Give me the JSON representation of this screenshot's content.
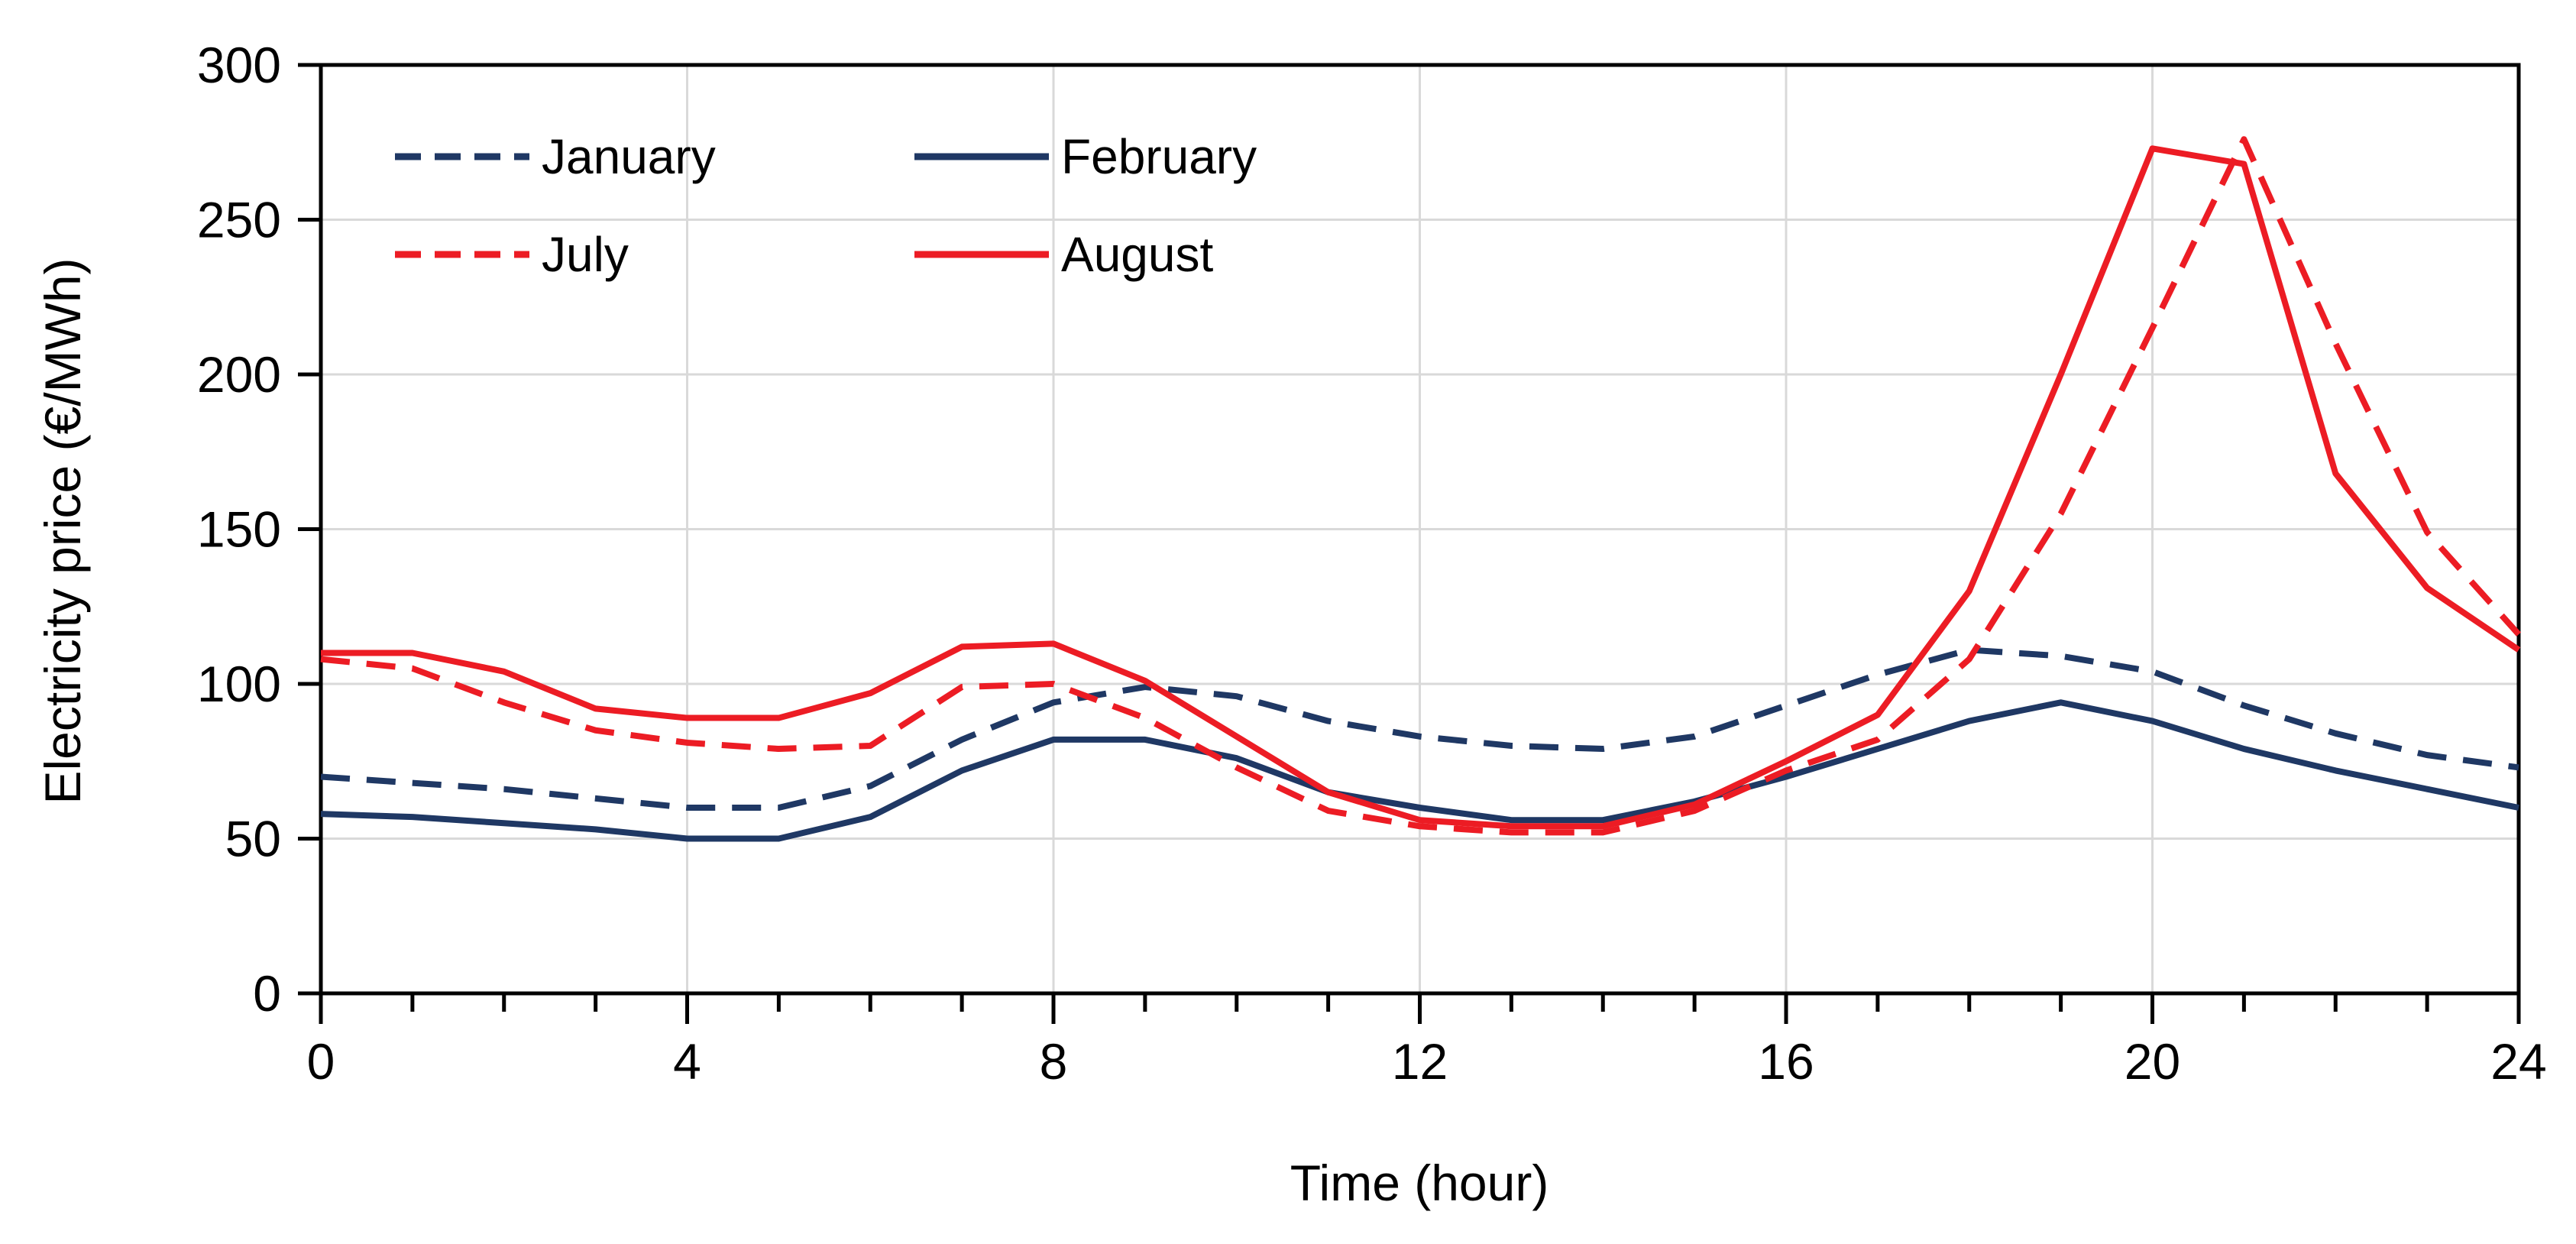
{
  "figure": {
    "background": "#ffffff",
    "text_color": "#000000"
  },
  "chart_data": {
    "type": "line",
    "title": "",
    "xlabel": "Time (hour)",
    "ylabel": "Electricity price (€/MWh)",
    "xlim": [
      0,
      24
    ],
    "ylim": [
      0,
      300
    ],
    "xticks": [
      0,
      4,
      8,
      12,
      16,
      20,
      24
    ],
    "yticks": [
      0,
      50,
      100,
      150,
      200,
      250,
      300
    ],
    "grid": {
      "on": true,
      "color": "#d9d9d9",
      "vertical_step_hours": 4,
      "horizontal_step": 50
    },
    "axis_color": "#000000",
    "x": [
      0,
      1,
      2,
      3,
      4,
      5,
      6,
      7,
      8,
      9,
      10,
      11,
      12,
      13,
      14,
      15,
      16,
      17,
      18,
      19,
      20,
      21,
      22,
      23,
      24
    ],
    "series": [
      {
        "name": "January",
        "color": "#1f3864",
        "dash": true,
        "values": [
          70,
          68,
          66,
          63,
          60,
          60,
          67,
          82,
          94,
          99,
          96,
          88,
          83,
          80,
          79,
          83,
          93,
          103,
          111,
          109,
          104,
          93,
          84,
          77,
          73
        ]
      },
      {
        "name": "February",
        "color": "#1f3864",
        "dash": false,
        "values": [
          58,
          57,
          55,
          53,
          50,
          50,
          57,
          72,
          82,
          82,
          76,
          65,
          60,
          56,
          56,
          62,
          70,
          79,
          88,
          94,
          88,
          79,
          72,
          66,
          60
        ]
      },
      {
        "name": "July",
        "color": "#ec1c24",
        "dash": true,
        "values": [
          108,
          105,
          94,
          85,
          81,
          79,
          80,
          99,
          100,
          89,
          73,
          59,
          54,
          52,
          52,
          59,
          72,
          82,
          108,
          155,
          215,
          276,
          210,
          149,
          116
        ]
      },
      {
        "name": "August",
        "color": "#ec1c24",
        "dash": false,
        "values": [
          110,
          110,
          104,
          92,
          89,
          89,
          97,
          112,
          113,
          101,
          83,
          65,
          56,
          54,
          54,
          61,
          75,
          90,
          130,
          200,
          273,
          268,
          168,
          131,
          111
        ]
      }
    ],
    "legend_position": "top-left-inside",
    "legend_columns": 2
  }
}
